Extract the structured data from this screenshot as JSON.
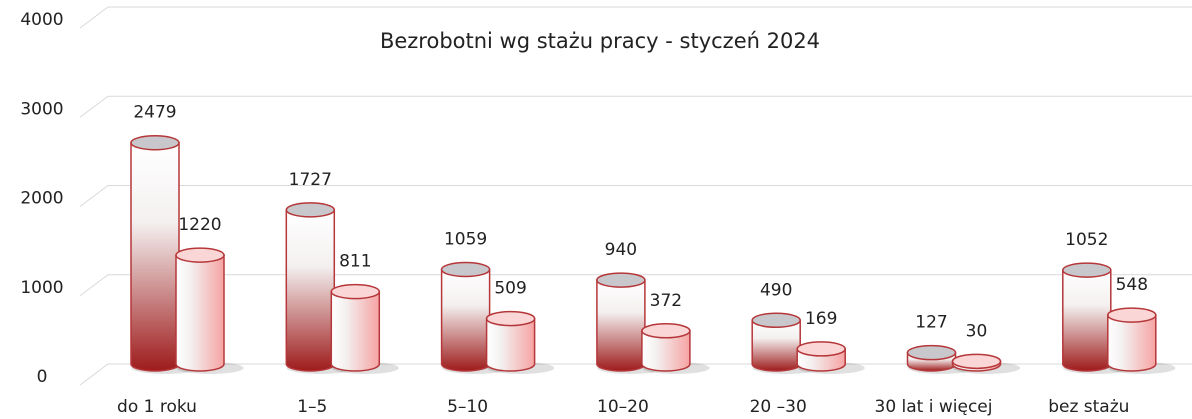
{
  "chart_data": {
    "type": "bar",
    "title": "Bezrobotni wg stażu pracy  - styczeń 2024",
    "categories": [
      "do 1 roku",
      "1–5",
      "5–10",
      "10–20",
      "20 –30",
      "30 lat i więcej",
      "bez stażu"
    ],
    "series": [
      {
        "color": "#9e1b1b",
        "values": [
          2479,
          1727,
          1059,
          940,
          490,
          127,
          1052
        ]
      },
      {
        "color": "#f6a3a3",
        "values": [
          1220,
          811,
          509,
          372,
          169,
          30,
          548
        ]
      }
    ],
    "ylim": [
      0,
      4000
    ],
    "yticks": [
      0,
      1000,
      2000,
      3000,
      4000
    ],
    "grid": true
  }
}
